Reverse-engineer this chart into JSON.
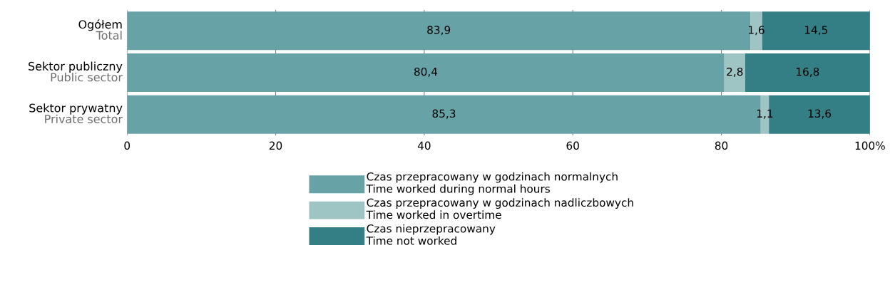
{
  "chart_data": {
    "type": "bar",
    "orientation": "horizontal",
    "stacked": true,
    "categories": [
      "Ogółem\nTotal",
      "Sektor publiczny\nPublic sector",
      "Sektor prywatny\nPrivate sector"
    ],
    "series": [
      {
        "name": "Czas przepracowany w godzinach normalnych\nTime worked during normal hours",
        "color": "#67a3a6",
        "values": [
          83.9,
          80.4,
          85.3
        ],
        "value_labels": [
          "83,9",
          "80,4",
          "85,3"
        ]
      },
      {
        "name": "Czas przepracowany w godzinach nadliczbowych\nTime worked in overtime",
        "color": "#9ec4c4",
        "values": [
          1.6,
          2.8,
          1.1
        ],
        "value_labels": [
          "1,6",
          "2,8",
          "1,1"
        ]
      },
      {
        "name": "Czas nieprzepracowany\nTime not worked",
        "color": "#347f85",
        "values": [
          14.5,
          16.8,
          13.6
        ],
        "value_labels": [
          "14,5",
          "16,8",
          "13,6"
        ]
      }
    ],
    "xlim": [
      0,
      100
    ],
    "xticks": [
      0,
      20,
      40,
      60,
      80,
      {
        "value": 100,
        "label": "100%"
      }
    ],
    "grid": "x",
    "legend": "bottom"
  }
}
